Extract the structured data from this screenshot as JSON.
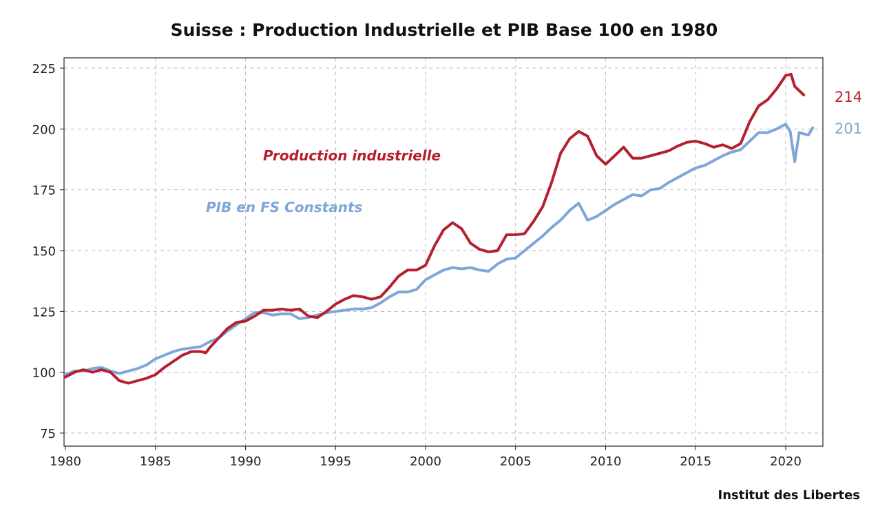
{
  "chart_data": {
    "type": "line",
    "title": "Suisse : Production Industrielle et PIB Base 100 en 1980",
    "xlabel": "",
    "ylabel": "",
    "xlim": [
      1980,
      2022.1
    ],
    "ylim": [
      70,
      229
    ],
    "grid": true,
    "x_ticks": [
      "1980",
      "1985",
      "1990",
      "1995",
      "2000",
      "2005",
      "2010",
      "2015",
      "2020"
    ],
    "y_ticks": [
      "75",
      "100",
      "125",
      "150",
      "175",
      "200",
      "225"
    ],
    "source": "Institut des Libertes",
    "series": [
      {
        "name": "Production industrielle",
        "color": "#b5202e",
        "end_label": "214",
        "x": [
          1980,
          1980.5,
          1981,
          1981.5,
          1982,
          1982.5,
          1983,
          1983.5,
          1984,
          1984.5,
          1985,
          1985.5,
          1986,
          1986.5,
          1987,
          1987.5,
          1987.8,
          1988,
          1988.5,
          1989,
          1989.5,
          1990,
          1990.5,
          1991,
          1991.5,
          1992,
          1992.5,
          1993,
          1993.5,
          1994,
          1994.5,
          1995,
          1995.5,
          1996,
          1996.5,
          1997,
          1997.5,
          1998,
          1998.5,
          1999,
          1999.5,
          2000,
          2000.5,
          2001,
          2001.5,
          2002,
          2002.5,
          2003,
          2003.5,
          2004,
          2004.5,
          2005,
          2005.5,
          2006,
          2006.5,
          2007,
          2007.5,
          2008,
          2008.5,
          2009,
          2009.5,
          2010,
          2010.5,
          2011,
          2011.5,
          2012,
          2012.5,
          2013,
          2013.5,
          2014,
          2014.5,
          2015,
          2015.5,
          2016,
          2016.5,
          2017,
          2017.5,
          2018,
          2018.5,
          2019,
          2019.5,
          2020,
          2020.3,
          2020.5,
          2021
        ],
        "values": [
          98,
          100,
          101,
          100,
          101,
          100,
          96.5,
          95.5,
          96.5,
          97.5,
          99,
          102,
          104.5,
          107,
          108.5,
          108.5,
          108,
          110,
          114,
          118,
          120.5,
          121,
          123,
          125.5,
          125.5,
          126,
          125.5,
          126,
          123,
          122.5,
          125,
          128,
          130,
          131.5,
          131,
          130,
          131,
          135,
          139.5,
          142,
          142,
          144,
          152,
          158.5,
          161.5,
          159,
          153,
          150.5,
          149.5,
          150,
          156.5,
          156.5,
          157,
          162,
          168,
          178,
          190,
          196,
          199,
          197,
          189,
          185.5,
          189,
          192.5,
          188,
          188,
          189,
          190,
          191,
          193,
          194.5,
          195,
          194,
          192.5,
          193.5,
          192,
          194,
          203,
          209.5,
          212,
          216.5,
          222,
          222.5,
          217.5,
          214
        ]
      },
      {
        "name": "PIB en FS Constants",
        "color": "#7ea6d8",
        "end_label": "201",
        "x": [
          1980,
          1980.5,
          1981,
          1981.5,
          1982,
          1982.5,
          1983,
          1983.5,
          1984,
          1984.5,
          1985,
          1985.5,
          1986,
          1986.5,
          1987,
          1987.5,
          1988,
          1988.5,
          1989,
          1989.5,
          1990,
          1990.5,
          1991,
          1991.5,
          1992,
          1992.5,
          1993,
          1993.5,
          1994,
          1994.5,
          1995,
          1995.5,
          1996,
          1996.5,
          1997,
          1997.5,
          1998,
          1998.5,
          1999,
          1999.5,
          2000,
          2000.5,
          2001,
          2001.5,
          2002,
          2002.5,
          2003,
          2003.5,
          2004,
          2004.5,
          2005,
          2005.5,
          2006,
          2006.5,
          2007,
          2007.5,
          2008,
          2008.5,
          2009,
          2009.5,
          2010,
          2010.5,
          2011,
          2011.5,
          2012,
          2012.5,
          2013,
          2013.5,
          2014,
          2014.5,
          2015,
          2015.5,
          2016,
          2016.5,
          2017,
          2017.5,
          2018,
          2018.5,
          2019,
          2019.5,
          2020,
          2020.25,
          2020.5,
          2020.75,
          2021,
          2021.25,
          2021.5
        ],
        "values": [
          99,
          100.5,
          100.5,
          101.5,
          102,
          100.5,
          99.5,
          100.5,
          101.5,
          103,
          105.5,
          107,
          108.5,
          109.5,
          110,
          110.5,
          112.5,
          114,
          117,
          119.5,
          122,
          124.5,
          124.5,
          123.5,
          124,
          124,
          122,
          122.5,
          123.5,
          124.5,
          125,
          125.5,
          126,
          126,
          126.5,
          128.5,
          131,
          133,
          133,
          134,
          138,
          140,
          142,
          143,
          142.5,
          143,
          142,
          141.5,
          144.5,
          146.5,
          147,
          150,
          153,
          156,
          159.5,
          162.5,
          166.5,
          169.5,
          162.5,
          164,
          166.5,
          169,
          171,
          173,
          172.5,
          175,
          175.5,
          178,
          180,
          182,
          184,
          185,
          187,
          189,
          190.5,
          191.5,
          195,
          198.5,
          198.5,
          200,
          202,
          199,
          186.5,
          198.5,
          198,
          197.5,
          200.5
        ]
      }
    ]
  }
}
